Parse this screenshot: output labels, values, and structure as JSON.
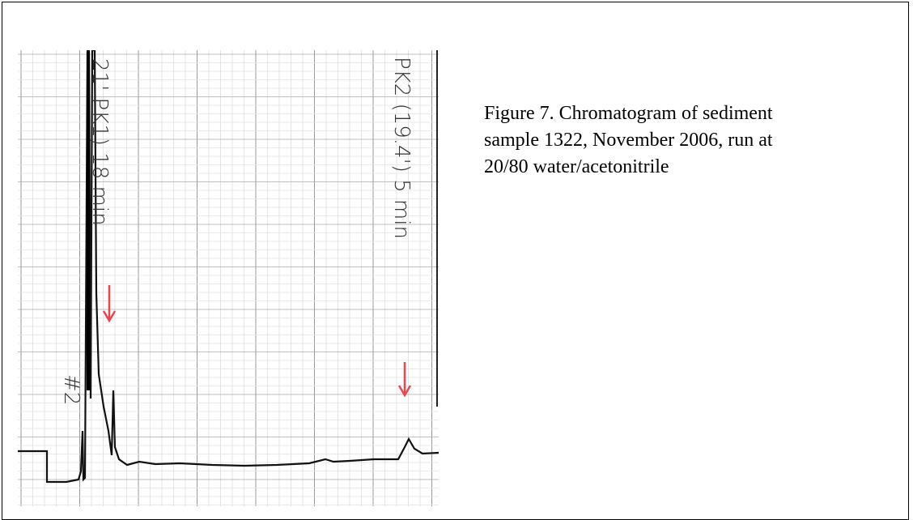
{
  "figure": {
    "caption": {
      "lines": [
        "Figure 7. Chromatogram of sediment",
        "sample 1322, November 2006, run at",
        "20/80 water/acetonitrile"
      ]
    },
    "annotations": [
      "#2",
      "21' PK1) 18 min",
      "PK2 (19.4') 5 min"
    ]
  }
}
